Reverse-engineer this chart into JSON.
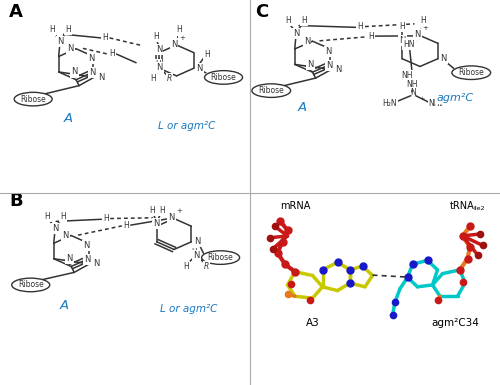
{
  "panel_label_fontsize": 13,
  "panel_label_color": "#000000",
  "blue_color": "#1a7abf",
  "struct_color": "#333333",
  "background_color": "#ffffff",
  "fig_width": 5.0,
  "fig_height": 3.85,
  "dpi": 100,
  "label_A": "A",
  "label_L": "L or agm²C",
  "label_agm2C": "agm²C",
  "label_mRNA": "mRNA",
  "label_tRNA": "tRNA",
  "label_A3": "A3",
  "label_C34": "agm²C34"
}
